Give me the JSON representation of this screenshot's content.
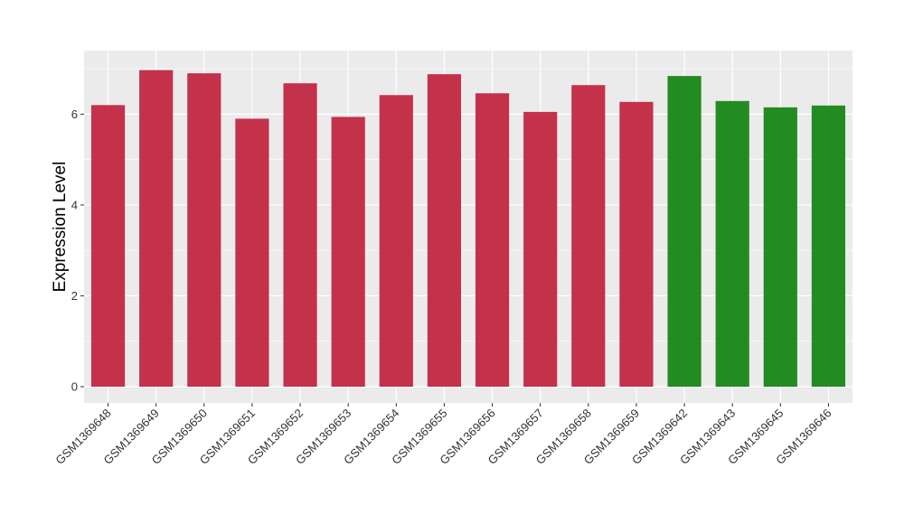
{
  "chart_data": {
    "type": "bar",
    "title": "",
    "xlabel": "",
    "ylabel": "Expression Level",
    "ylim": [
      0,
      7.4
    ],
    "yticks": [
      0,
      2,
      4,
      6
    ],
    "grid": true,
    "legend": "none",
    "categories": [
      "GSM1369648",
      "GSM1369649",
      "GSM1369650",
      "GSM1369651",
      "GSM1369652",
      "GSM1369653",
      "GSM1369654",
      "GSM1369655",
      "GSM1369656",
      "GSM1369657",
      "GSM1369658",
      "GSM1369659",
      "GSM1369642",
      "GSM1369643",
      "GSM1369645",
      "GSM1369646"
    ],
    "values": [
      6.2,
      6.97,
      6.9,
      5.9,
      6.68,
      5.94,
      6.42,
      6.88,
      6.46,
      6.05,
      6.64,
      6.27,
      6.84,
      6.29,
      6.15,
      6.19
    ],
    "bar_colors": [
      "#C4314B",
      "#C4314B",
      "#C4314B",
      "#C4314B",
      "#C4314B",
      "#C4314B",
      "#C4314B",
      "#C4314B",
      "#C4314B",
      "#C4314B",
      "#C4314B",
      "#C4314B",
      "#228B22",
      "#228B22",
      "#228B22",
      "#228B22"
    ],
    "panel_color": "#EBEBEB",
    "grid_color": "#FFFFFF"
  }
}
